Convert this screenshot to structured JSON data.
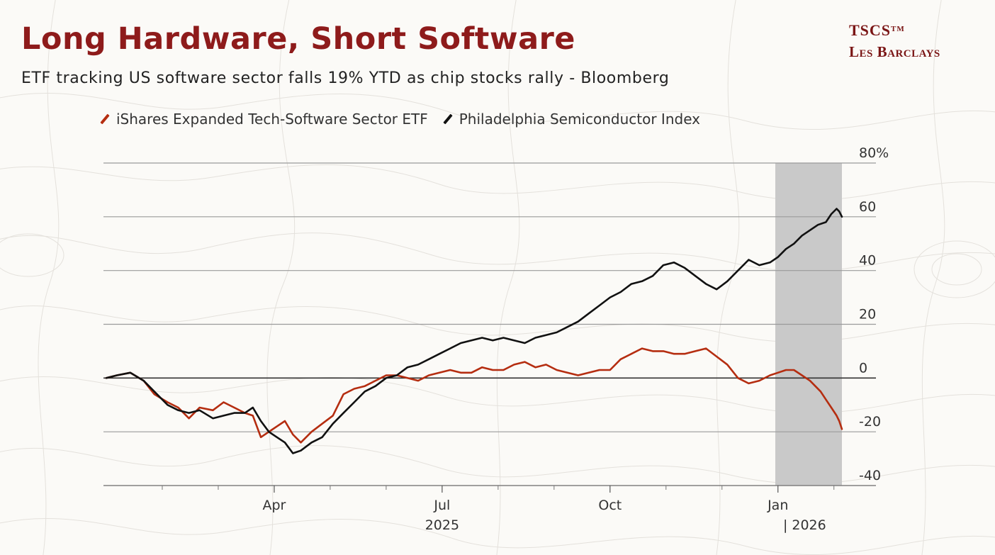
{
  "header": {
    "title": "Long Hardware, Short Software",
    "subtitle": "ETF tracking US software sector falls 19% YTD as chip stocks rally - Bloomberg"
  },
  "brand": {
    "line1": "TSCS",
    "trademark": "TM",
    "line2": "Les Barclays",
    "color": "#7a1515"
  },
  "chart_data": {
    "type": "line",
    "title": "Long Hardware, Short Software",
    "subtitle": "ETF tracking US software sector falls 19% YTD as chip stocks rally - Bloomberg",
    "xlabel": "",
    "ylabel": "",
    "y_unit": "%",
    "ylim": [
      -40,
      80
    ],
    "y_ticks": [
      -40,
      -20,
      0,
      20,
      40,
      60,
      80
    ],
    "y_tick_labels": [
      "-40",
      "-20",
      "0",
      "20",
      "40",
      "60",
      "80%"
    ],
    "x_unit": "trading day since start of 2025",
    "xlim": [
      0,
      276
    ],
    "x_ticks": [
      {
        "x": 63,
        "label": "Apr"
      },
      {
        "x": 126,
        "label": "Jul"
      },
      {
        "x": 189,
        "label": "Oct"
      },
      {
        "x": 252,
        "label": "Jan"
      }
    ],
    "x_minor_ticks": [
      21,
      42,
      84,
      105,
      147,
      168,
      210,
      231,
      273
    ],
    "year_labels": [
      {
        "x": 126,
        "label": "2025"
      },
      {
        "x": 262,
        "label": "| 2026"
      }
    ],
    "shaded_region": {
      "start": 251,
      "end": 276,
      "color": "#c9c9c9"
    },
    "grid": true,
    "legend_position": "top-left",
    "series": [
      {
        "name": "iShares Expanded Tech-Software Sector ETF",
        "color": "#b52d10",
        "points": [
          [
            0,
            0
          ],
          [
            4,
            1
          ],
          [
            9,
            2
          ],
          [
            14,
            -1
          ],
          [
            18,
            -6
          ],
          [
            23,
            -9
          ],
          [
            27,
            -11
          ],
          [
            31,
            -15
          ],
          [
            35,
            -11
          ],
          [
            40,
            -12
          ],
          [
            44,
            -9
          ],
          [
            48,
            -11
          ],
          [
            52,
            -13
          ],
          [
            55,
            -14
          ],
          [
            58,
            -22
          ],
          [
            61,
            -20
          ],
          [
            64,
            -18
          ],
          [
            67,
            -16
          ],
          [
            70,
            -21
          ],
          [
            73,
            -24
          ],
          [
            77,
            -20
          ],
          [
            81,
            -17
          ],
          [
            85,
            -14
          ],
          [
            89,
            -6
          ],
          [
            93,
            -4
          ],
          [
            97,
            -3
          ],
          [
            101,
            -1
          ],
          [
            105,
            1
          ],
          [
            109,
            1
          ],
          [
            113,
            0
          ],
          [
            117,
            -1
          ],
          [
            121,
            1
          ],
          [
            125,
            2
          ],
          [
            129,
            3
          ],
          [
            133,
            2
          ],
          [
            137,
            2
          ],
          [
            141,
            4
          ],
          [
            145,
            3
          ],
          [
            149,
            3
          ],
          [
            153,
            5
          ],
          [
            157,
            6
          ],
          [
            161,
            4
          ],
          [
            165,
            5
          ],
          [
            169,
            3
          ],
          [
            173,
            2
          ],
          [
            177,
            1
          ],
          [
            181,
            2
          ],
          [
            185,
            3
          ],
          [
            189,
            3
          ],
          [
            193,
            7
          ],
          [
            197,
            9
          ],
          [
            201,
            11
          ],
          [
            205,
            10
          ],
          [
            209,
            10
          ],
          [
            213,
            9
          ],
          [
            217,
            9
          ],
          [
            221,
            10
          ],
          [
            225,
            11
          ],
          [
            229,
            8
          ],
          [
            233,
            5
          ],
          [
            237,
            0
          ],
          [
            241,
            -2
          ],
          [
            245,
            -1
          ],
          [
            249,
            1
          ],
          [
            252,
            2
          ],
          [
            255,
            3
          ],
          [
            258,
            3
          ],
          [
            261,
            1
          ],
          [
            264,
            -1
          ],
          [
            266,
            -3
          ],
          [
            268,
            -5
          ],
          [
            270,
            -8
          ],
          [
            272,
            -11
          ],
          [
            274,
            -14
          ],
          [
            275,
            -16
          ],
          [
            276,
            -19
          ]
        ]
      },
      {
        "name": "Philadelphia Semiconductor Index",
        "color": "#111111",
        "points": [
          [
            0,
            0
          ],
          [
            4,
            1
          ],
          [
            9,
            2
          ],
          [
            14,
            -1
          ],
          [
            18,
            -5
          ],
          [
            23,
            -10
          ],
          [
            27,
            -12
          ],
          [
            31,
            -13
          ],
          [
            35,
            -12
          ],
          [
            40,
            -15
          ],
          [
            44,
            -14
          ],
          [
            48,
            -13
          ],
          [
            52,
            -13
          ],
          [
            55,
            -11
          ],
          [
            58,
            -16
          ],
          [
            61,
            -20
          ],
          [
            64,
            -22
          ],
          [
            67,
            -24
          ],
          [
            70,
            -28
          ],
          [
            73,
            -27
          ],
          [
            77,
            -24
          ],
          [
            81,
            -22
          ],
          [
            85,
            -17
          ],
          [
            89,
            -13
          ],
          [
            93,
            -9
          ],
          [
            97,
            -5
          ],
          [
            101,
            -3
          ],
          [
            105,
            0
          ],
          [
            109,
            1
          ],
          [
            113,
            4
          ],
          [
            117,
            5
          ],
          [
            121,
            7
          ],
          [
            125,
            9
          ],
          [
            129,
            11
          ],
          [
            133,
            13
          ],
          [
            137,
            14
          ],
          [
            141,
            15
          ],
          [
            145,
            14
          ],
          [
            149,
            15
          ],
          [
            153,
            14
          ],
          [
            157,
            13
          ],
          [
            161,
            15
          ],
          [
            165,
            16
          ],
          [
            169,
            17
          ],
          [
            173,
            19
          ],
          [
            177,
            21
          ],
          [
            181,
            24
          ],
          [
            185,
            27
          ],
          [
            189,
            30
          ],
          [
            193,
            32
          ],
          [
            197,
            35
          ],
          [
            201,
            36
          ],
          [
            205,
            38
          ],
          [
            209,
            42
          ],
          [
            213,
            43
          ],
          [
            217,
            41
          ],
          [
            221,
            38
          ],
          [
            225,
            35
          ],
          [
            229,
            33
          ],
          [
            233,
            36
          ],
          [
            237,
            40
          ],
          [
            241,
            44
          ],
          [
            245,
            42
          ],
          [
            249,
            43
          ],
          [
            252,
            45
          ],
          [
            255,
            48
          ],
          [
            258,
            50
          ],
          [
            261,
            53
          ],
          [
            264,
            55
          ],
          [
            267,
            57
          ],
          [
            270,
            58
          ],
          [
            272,
            61
          ],
          [
            274,
            63
          ],
          [
            275,
            62
          ],
          [
            276,
            60
          ]
        ]
      }
    ]
  }
}
